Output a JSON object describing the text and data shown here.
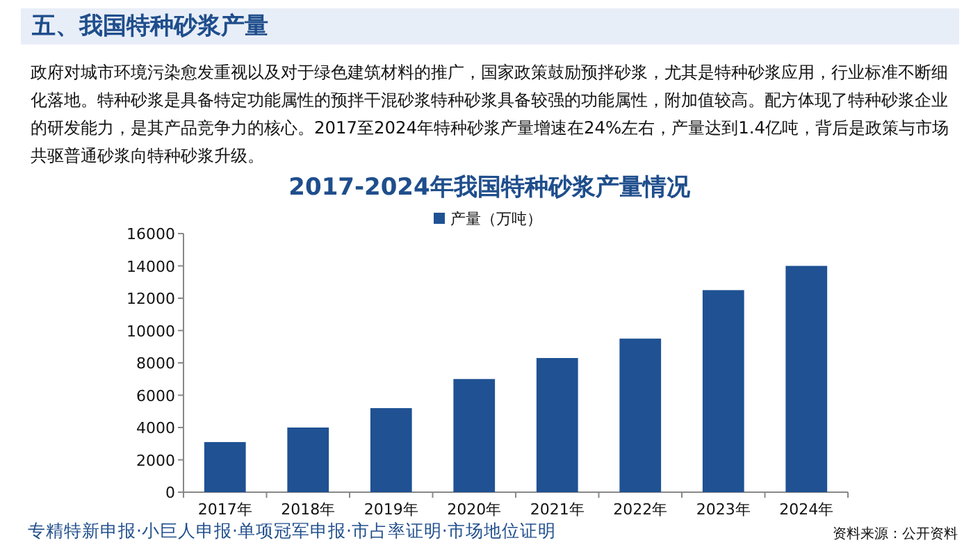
{
  "chart_data": {
    "type": "bar",
    "title": "2017-2024年我国特种砂浆产量情况",
    "categories": [
      "2017年",
      "2018年",
      "2019年",
      "2020年",
      "2021年",
      "2022年",
      "2023年",
      "2024年"
    ],
    "series": [
      {
        "name": "产量（万吨）",
        "color": "#1f5193",
        "values": [
          3100,
          4000,
          5200,
          7000,
          8300,
          9500,
          12500,
          14000
        ]
      }
    ],
    "ylim": [
      0,
      16000
    ],
    "yticks": [
      0,
      2000,
      4000,
      6000,
      8000,
      10000,
      12000,
      14000,
      16000
    ],
    "legend": "top",
    "grid": false,
    "annotations": [
      "五、我国特种砂浆产量",
      "政府对城市环境污染愈发重视以及对于绿色建筑材料的推广，国家政策鼓励预拌砂浆，尤其是特种砂浆应用，行业标准不断细化落地。特种砂浆是具备特定功能属性的预拌干混砂浆特种砂浆具备较强的功能属性，附加值较高。配方体现了特种砂浆企业的研发能力，是其产品竞争力的核心。2017至2024年特种砂浆产量增速在24%左右，产量达到1.4亿吨，背后是政策与市场共驱普通砂浆向特种砂浆升级。",
      "专精特新申报·小巨人申报·单项冠军申报·市占率证明·市场地位证明",
      "资料来源：公开资料"
    ]
  }
}
